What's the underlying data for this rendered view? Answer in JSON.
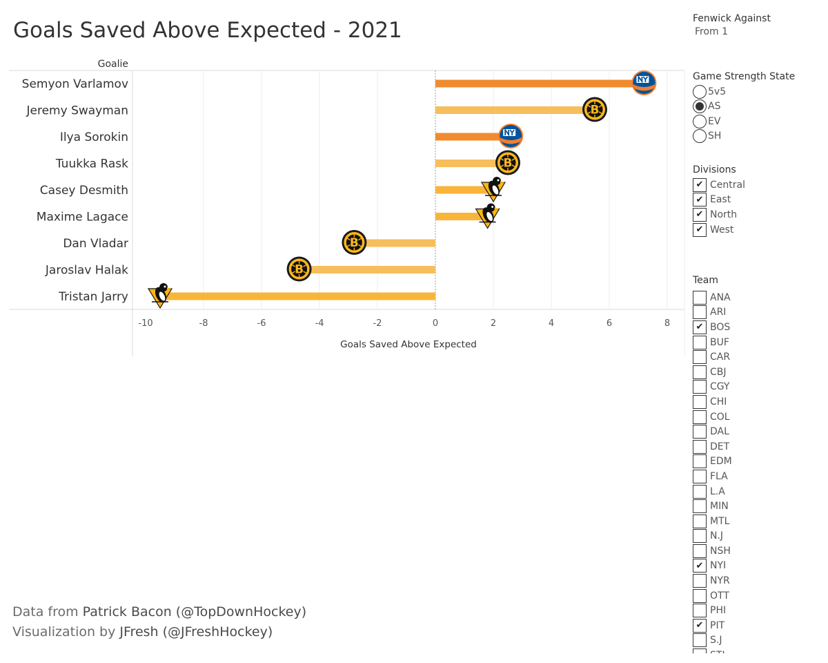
{
  "title": "Goals Saved Above Expected - 2021",
  "chart_data": {
    "type": "bar",
    "orientation": "horizontal",
    "row_header": "Goalie",
    "xlabel": "Goals Saved Above Expected",
    "xlim": [
      -10.5,
      8.5
    ],
    "xticks": [
      -10,
      -8,
      -6,
      -4,
      -2,
      0,
      2,
      4,
      6,
      8
    ],
    "grid": true,
    "rows": [
      {
        "goalie": "Semyon Varlamov",
        "value": 7.2,
        "team_logo": "islanders-logo",
        "color": "#F08C2F"
      },
      {
        "goalie": "Jeremy Swayman",
        "value": 5.5,
        "team_logo": "bruins-logo",
        "color": "#F7BE5C"
      },
      {
        "goalie": "Ilya Sorokin",
        "value": 2.6,
        "team_logo": "islanders-logo",
        "color": "#F08C2F"
      },
      {
        "goalie": "Tuukka Rask",
        "value": 2.5,
        "team_logo": "bruins-logo",
        "color": "#F7BE5C"
      },
      {
        "goalie": "Casey Desmith",
        "value": 2.0,
        "team_logo": "penguins-logo",
        "color": "#F9B43A"
      },
      {
        "goalie": "Maxime Lagace",
        "value": 1.8,
        "team_logo": "penguins-logo",
        "color": "#F9B43A"
      },
      {
        "goalie": "Dan Vladar",
        "value": -2.8,
        "team_logo": "bruins-logo",
        "color": "#F7BE5C"
      },
      {
        "goalie": "Jaroslav Halak",
        "value": -4.7,
        "team_logo": "bruins-logo",
        "color": "#F7BE5C"
      },
      {
        "goalie": "Tristan Jarry",
        "value": -9.5,
        "team_logo": "penguins-logo",
        "color": "#F9B43A"
      }
    ]
  },
  "credits": {
    "line1_prefix": "Data from ",
    "line1_name": "Patrick Bacon (@TopDownHockey)",
    "line2_prefix": "Visualization by ",
    "line2_name": "JFresh (@JFreshHockey)"
  },
  "filters": {
    "fenwick": {
      "title": "Fenwick Against",
      "value": "From 1"
    },
    "strength": {
      "title": "Game Strength State",
      "options": [
        {
          "label": "5v5",
          "selected": false
        },
        {
          "label": "AS",
          "selected": true
        },
        {
          "label": "EV",
          "selected": false
        },
        {
          "label": "SH",
          "selected": false
        }
      ]
    },
    "divisions": {
      "title": "Divisions",
      "options": [
        {
          "label": "Central",
          "checked": true
        },
        {
          "label": "East",
          "checked": true
        },
        {
          "label": "North",
          "checked": true
        },
        {
          "label": "West",
          "checked": true
        }
      ]
    },
    "team": {
      "title": "Team",
      "options": [
        {
          "label": "ANA",
          "checked": false
        },
        {
          "label": "ARI",
          "checked": false
        },
        {
          "label": "BOS",
          "checked": true
        },
        {
          "label": "BUF",
          "checked": false
        },
        {
          "label": "CAR",
          "checked": false
        },
        {
          "label": "CBJ",
          "checked": false
        },
        {
          "label": "CGY",
          "checked": false
        },
        {
          "label": "CHI",
          "checked": false
        },
        {
          "label": "COL",
          "checked": false
        },
        {
          "label": "DAL",
          "checked": false
        },
        {
          "label": "DET",
          "checked": false
        },
        {
          "label": "EDM",
          "checked": false
        },
        {
          "label": "FLA",
          "checked": false
        },
        {
          "label": "L.A",
          "checked": false
        },
        {
          "label": "MIN",
          "checked": false
        },
        {
          "label": "MTL",
          "checked": false
        },
        {
          "label": "N.J",
          "checked": false
        },
        {
          "label": "NSH",
          "checked": false
        },
        {
          "label": "NYI",
          "checked": true
        },
        {
          "label": "NYR",
          "checked": false
        },
        {
          "label": "OTT",
          "checked": false
        },
        {
          "label": "PHI",
          "checked": false
        },
        {
          "label": "PIT",
          "checked": true
        },
        {
          "label": "S.J",
          "checked": false
        },
        {
          "label": "STL",
          "checked": false
        }
      ]
    }
  }
}
